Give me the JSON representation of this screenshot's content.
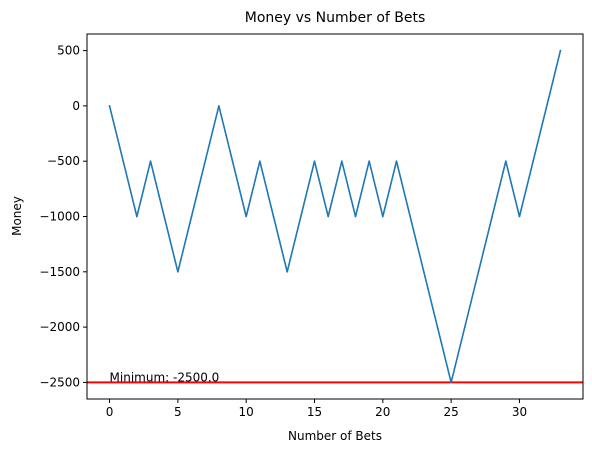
{
  "chart_data": {
    "type": "line",
    "title": "Money vs Number of Bets",
    "xlabel": "Number of Bets",
    "ylabel": "Money",
    "xlim": [
      -1.65,
      34.65
    ],
    "ylim": [
      -2650,
      650
    ],
    "xticks": [
      0,
      5,
      10,
      15,
      20,
      25,
      30
    ],
    "yticks": [
      -2500,
      -2000,
      -1500,
      -1000,
      -500,
      0,
      500
    ],
    "ytick_labels": [
      "−2500",
      "−2000",
      "−1500",
      "−1000",
      "−500",
      "0",
      "500"
    ],
    "grid": false,
    "series": [
      {
        "color": "#1f77b4",
        "x": [
          0,
          1,
          2,
          3,
          4,
          5,
          6,
          7,
          8,
          9,
          10,
          11,
          12,
          13,
          14,
          15,
          16,
          17,
          18,
          19,
          20,
          21,
          22,
          23,
          24,
          25,
          26,
          27,
          28,
          29,
          30,
          31,
          32,
          33
        ],
        "values": [
          0,
          -500,
          -1000,
          -500,
          -1000,
          -1500,
          -1000,
          -500,
          0,
          -500,
          -1000,
          -500,
          -1000,
          -1500,
          -1000,
          -500,
          -1000,
          -500,
          -1000,
          -500,
          -1000,
          -500,
          -1000,
          -1500,
          -2000,
          -2500,
          -2000,
          -1500,
          -1000,
          -500,
          -1000,
          -500,
          0,
          500
        ]
      }
    ],
    "hline": {
      "y": -2500,
      "color": "#ff0000"
    },
    "annotation": {
      "text": "Minimum: -2500.0",
      "x": 0,
      "y": -2500
    }
  }
}
